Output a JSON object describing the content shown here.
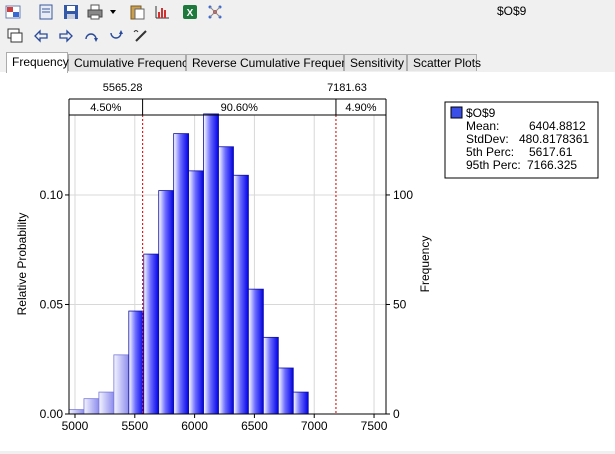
{
  "cell_title": "$O$9",
  "toolbar_icons": [
    "grid-icon",
    "save-icon",
    "disk-icon",
    "printer-icon",
    "dropdown-arrow-icon",
    "clipboard-icon",
    "chart-icon",
    "excel-icon",
    "network-icon",
    "copy-window-icon",
    "flip-left-icon",
    "flip-right-icon",
    "rotate-up-icon",
    "rotate-down-icon",
    "pen-icon"
  ],
  "tabs": [
    {
      "label": "Frequency",
      "active": true
    },
    {
      "label": "Cumulative Frequency",
      "active": false
    },
    {
      "label": "Reverse Cumulative Frequency",
      "active": false
    },
    {
      "label": "Sensitivity",
      "active": false
    },
    {
      "label": "Scatter Plots",
      "active": false
    }
  ],
  "stats": {
    "name": "$O$9",
    "mean_label": "Mean:",
    "mean": "6404.8812",
    "stddev_label": "StdDev:",
    "stddev": "480.8178361",
    "p5_label": "5th Perc:",
    "p5": "5617.61",
    "p95_label": "95th Perc:",
    "p95": "7166.325"
  },
  "chart_data": {
    "type": "bar",
    "bin_start": 4950,
    "bin_width": 125,
    "values": [
      0.002,
      0.007,
      0.01,
      0.027,
      0.047,
      0.073,
      0.102,
      0.128,
      0.111,
      0.137,
      0.122,
      0.109,
      0.057,
      0.035,
      0.021,
      0.01
    ],
    "xlim": [
      4950,
      7600
    ],
    "ylim": [
      0,
      0.1365
    ],
    "x_ticks": [
      "5000",
      "5500",
      "6000",
      "6500",
      "7000",
      "7500"
    ],
    "x_tick_values": [
      5000,
      5500,
      6000,
      6500,
      7000,
      7500
    ],
    "y_ticks": [
      "0.00",
      "0.05",
      "0.10"
    ],
    "y_tick_values": [
      0,
      0.05,
      0.1
    ],
    "y2_ticks": [
      "0",
      "50",
      "100"
    ],
    "y2_tick_values": [
      0,
      50,
      100
    ],
    "y2_scale": 1000,
    "ylabel": "Relative Probability",
    "y2label": "Frequency",
    "lower_cut": 5565.28,
    "upper_cut": 7181.63,
    "lower_cut_label": "5565.28",
    "upper_cut_label": "7181.63",
    "band_labels": [
      "4.50%",
      "90.60%",
      "4.90%"
    ],
    "bar_color": "#0000ff",
    "tail_color": "#8888ee",
    "cut_line_color": "#e02020"
  }
}
